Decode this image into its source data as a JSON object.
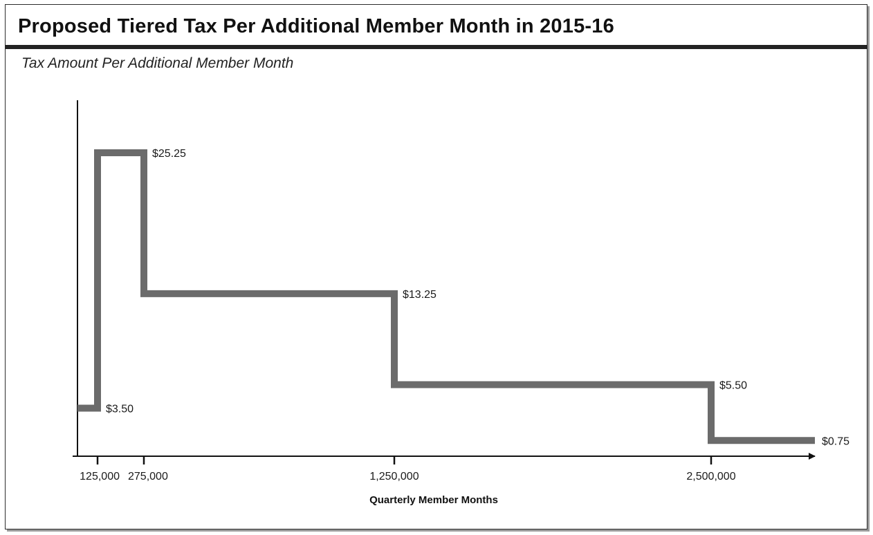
{
  "chart_data": {
    "type": "line",
    "title": "Proposed Tiered Tax Per Additional Member Month in 2015-16",
    "subtitle": "Tax Amount Per Additional Member Month",
    "xlabel": "Quarterly Member Months",
    "ylabel": "",
    "step": true,
    "ylim": [
      0,
      28
    ],
    "x_ticks": [
      {
        "value": 125000,
        "label": "125,000"
      },
      {
        "value": 275000,
        "label": "275,000"
      },
      {
        "value": 1250000,
        "label": "1,250,000"
      },
      {
        "value": 2500000,
        "label": "2,500,000"
      }
    ],
    "tiers": [
      {
        "from": 0,
        "to": 125000,
        "value": 3.5,
        "label": "$3.50"
      },
      {
        "from": 125000,
        "to": 275000,
        "value": 25.25,
        "label": "$25.25"
      },
      {
        "from": 275000,
        "to": 1250000,
        "value": 13.25,
        "label": "$13.25"
      },
      {
        "from": 1250000,
        "to": 2500000,
        "value": 5.5,
        "label": "$5.50"
      },
      {
        "from": 2500000,
        "to": null,
        "value": 0.75,
        "label": "$0.75"
      }
    ],
    "colors": {
      "step_line": "#6b6b6b",
      "axes": "#111111"
    },
    "grid": false,
    "legend": "none"
  }
}
